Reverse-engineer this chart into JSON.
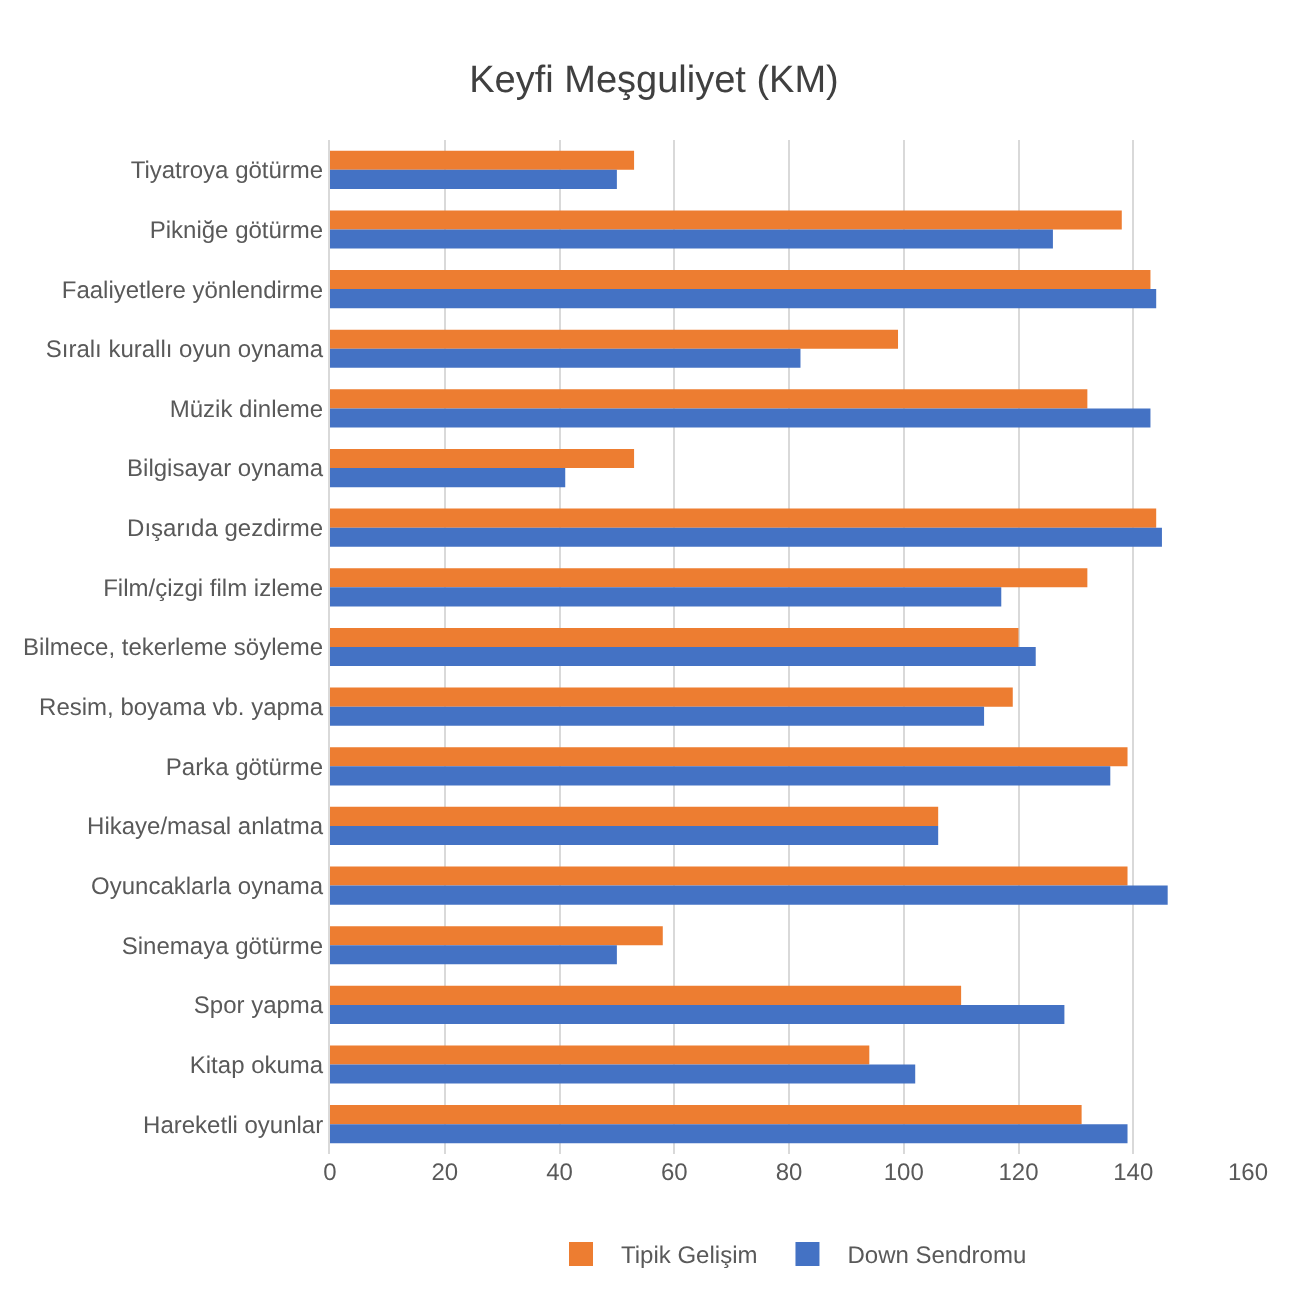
{
  "chart_data": {
    "type": "bar",
    "orientation": "horizontal",
    "title": "Keyfi Meşguliyet (KM)",
    "categories": [
      "Tiyatroya götürme",
      "Pikniğe götürme",
      "Faaliyetlere yönlendirme",
      "Sıralı kurallı oyun oynama",
      "Müzik dinleme",
      "Bilgisayar oynama",
      "Dışarıda gezdirme",
      "Film/çizgi film izleme",
      "Bilmece, tekerleme söyleme",
      "Resim, boyama vb. yapma",
      "Parka götürme",
      "Hikaye/masal anlatma",
      "Oyuncaklarla oynama",
      "Sinemaya götürme",
      "Spor yapma",
      "Kitap okuma",
      "Hareketli oyunlar"
    ],
    "series": [
      {
        "name": "Tipik Gelişim",
        "color": "#ed7d31",
        "values": [
          53,
          138,
          143,
          99,
          132,
          53,
          144,
          132,
          120,
          119,
          139,
          106,
          139,
          58,
          110,
          94,
          131
        ]
      },
      {
        "name": "Down Sendromu",
        "color": "#4472c4",
        "values": [
          50,
          126,
          144,
          82,
          143,
          41,
          145,
          117,
          123,
          114,
          136,
          106,
          146,
          50,
          128,
          102,
          139
        ]
      }
    ],
    "xlim": [
      0,
      160
    ],
    "xticks": [
      0,
      20,
      40,
      60,
      80,
      100,
      120,
      140,
      160
    ],
    "grid": "x",
    "legend": "bottom"
  }
}
